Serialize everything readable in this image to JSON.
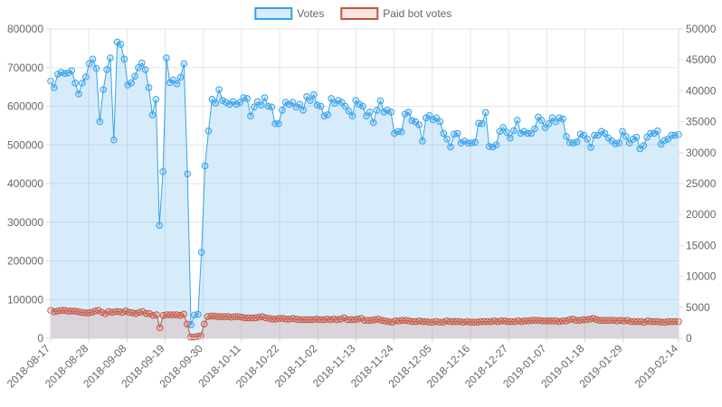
{
  "chart_data": {
    "type": "line",
    "title": "",
    "legend": {
      "position": "top-center",
      "entries": [
        "Votes",
        "Paid bot votes"
      ]
    },
    "grid": true,
    "x_tick_labels": [
      "2018-08-17",
      "2018-08-28",
      "2018-09-08",
      "2018-09-19",
      "2018-09-30",
      "2018-10-11",
      "2018-10-22",
      "2018-11-02",
      "2018-11-13",
      "2018-11-24",
      "2018-12-05",
      "2018-12-16",
      "2018-12-27",
      "2019-01-07",
      "2019-01-18",
      "2019-01-29",
      "2019-02-14"
    ],
    "x_range": [
      "2018-08-17",
      "2019-02-14"
    ],
    "y_left": {
      "min": 0,
      "max": 800000,
      "ticks": [
        "0",
        "100000",
        "200000",
        "300000",
        "400000",
        "500000",
        "600000",
        "700000",
        "800000"
      ]
    },
    "y_right": {
      "min": 0,
      "max": 50000,
      "ticks": [
        "0",
        "5000",
        "10000",
        "15000",
        "20000",
        "25000",
        "30000",
        "35000",
        "40000",
        "45000",
        "50000"
      ]
    },
    "series": [
      {
        "name": "Votes",
        "axis": "left",
        "color": "#36a2eb",
        "fill": "rgba(54,162,235,0.2)",
        "values": [
          665000,
          648000,
          683000,
          688000,
          685000,
          686000,
          692000,
          660000,
          632000,
          660000,
          676000,
          710000,
          722000,
          698000,
          560000,
          643000,
          695000,
          725000,
          513000,
          766000,
          760000,
          722000,
          655000,
          661000,
          678000,
          700000,
          712000,
          695000,
          648000,
          578000,
          618000,
          292000,
          431000,
          725000,
          661000,
          668000,
          658000,
          675000,
          710000,
          425000,
          35000,
          60000,
          62000,
          222000,
          446000,
          536000,
          618000,
          608000,
          643000,
          615000,
          610000,
          605000,
          612000,
          605000,
          610000,
          622000,
          620000,
          575000,
          598000,
          612000,
          603000,
          622000,
          600000,
          598000,
          555000,
          555000,
          590000,
          610000,
          605000,
          610000,
          598000,
          605000,
          590000,
          625000,
          615000,
          630000,
          603000,
          600000,
          575000,
          578000,
          620000,
          608000,
          615000,
          610000,
          600000,
          588000,
          575000,
          615000,
          605000,
          600000,
          575000,
          585000,
          558000,
          590000,
          614000,
          585000,
          590000,
          585000,
          530000,
          535000,
          534000,
          580000,
          585000,
          563000,
          560000,
          552000,
          510000,
          570000,
          576000,
          565000,
          570000,
          560000,
          530000,
          515000,
          495000,
          528000,
          530000,
          505000,
          510000,
          505000,
          505000,
          507000,
          556000,
          555000,
          584000,
          496000,
          495000,
          500000,
          535000,
          545000,
          533000,
          518000,
          537000,
          564000,
          530000,
          535000,
          530000,
          530000,
          542000,
          572000,
          563000,
          545000,
          555000,
          570000,
          560000,
          570000,
          567000,
          522000,
          506000,
          505000,
          508000,
          528000,
          525000,
          515000,
          494000,
          525000,
          525000,
          535000,
          530000,
          518000,
          510000,
          503000,
          505000,
          535000,
          522000,
          505000,
          515000,
          520000,
          490000,
          498000,
          520000,
          530000,
          530000,
          536000,
          502000,
          512000,
          515000,
          525000,
          525000,
          527000
        ]
      },
      {
        "name": "Paid bot votes",
        "axis": "right",
        "color": "#c0573f",
        "fill": "rgba(232,120,100,0.2)",
        "values": [
          4500,
          4300,
          4400,
          4500,
          4500,
          4400,
          4400,
          4400,
          4300,
          4200,
          4100,
          4100,
          4200,
          4400,
          4500,
          4200,
          4000,
          4300,
          4200,
          4300,
          4300,
          4200,
          4400,
          4200,
          4100,
          4000,
          4200,
          4300,
          4000,
          4000,
          3700,
          3800,
          1700,
          3700,
          3800,
          3800,
          3800,
          3800,
          3700,
          3900,
          2300,
          200,
          200,
          300,
          400,
          2300,
          3500,
          3600,
          3600,
          3500,
          3500,
          3500,
          3500,
          3400,
          3500,
          3500,
          3400,
          3300,
          3300,
          3300,
          3300,
          3400,
          3500,
          3300,
          3200,
          3100,
          3100,
          3200,
          3200,
          3100,
          3100,
          3200,
          3100,
          3000,
          3000,
          3000,
          3000,
          3000,
          3100,
          3000,
          3000,
          3100,
          3000,
          3100,
          3000,
          3100,
          3300,
          3000,
          3000,
          3000,
          3100,
          3200,
          2900,
          2900,
          2900,
          3000,
          3100,
          2900,
          2800,
          2700,
          2600,
          2800,
          2800,
          2900,
          2900,
          2800,
          2700,
          2700,
          2800,
          2700,
          2700,
          2600,
          2600,
          2700,
          2600,
          2600,
          2800,
          2700,
          2700,
          2700,
          2700,
          2600,
          2700,
          2600,
          2600,
          2600,
          2700,
          2700,
          2700,
          2700,
          2800,
          2700,
          2800,
          2800,
          2700,
          2700,
          2700,
          2800,
          2700,
          2800,
          2800,
          2900,
          2900,
          2900,
          2800,
          2800,
          2800,
          2800,
          2800,
          2700,
          2800,
          2800,
          3000,
          3100,
          2900,
          2900,
          3000,
          3000,
          3100,
          3200,
          3000,
          2900,
          2900,
          2900,
          2900,
          2900,
          2800,
          2900,
          2800,
          2900,
          2700,
          2700,
          2700,
          2700,
          2600,
          2800,
          2700,
          2700,
          2700,
          2600,
          2600,
          2700,
          2700,
          2700,
          2700
        ]
      }
    ]
  }
}
